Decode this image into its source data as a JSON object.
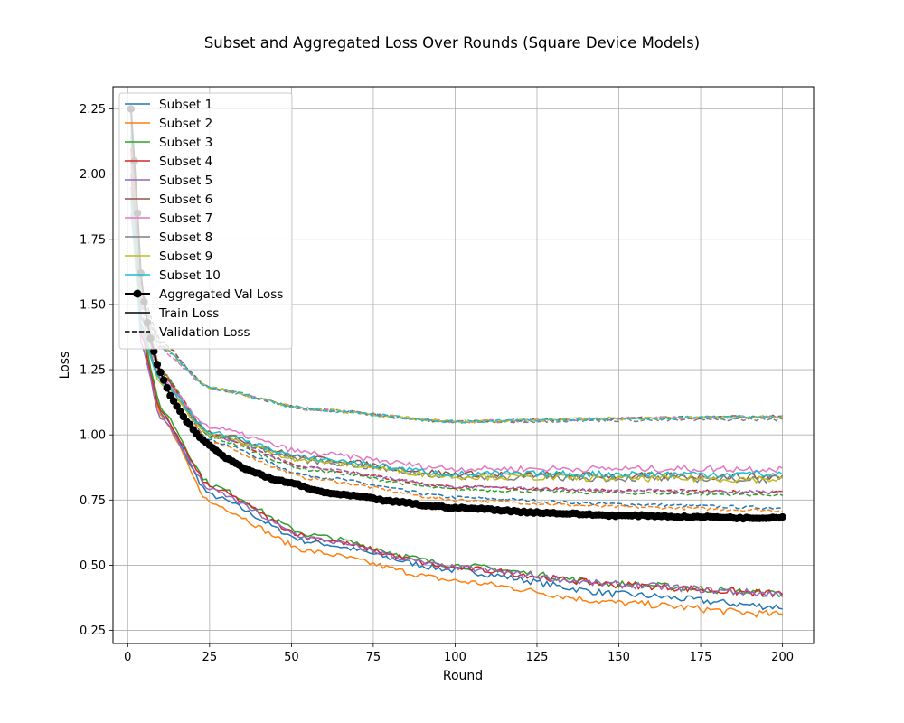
{
  "chart_data": {
    "type": "line",
    "title": "Subset and Aggregated Loss Over Rounds (Square Device Models)",
    "xlabel": "Round",
    "ylabel": "Loss",
    "xlim": [
      -4.5,
      209.5
    ],
    "ylim": [
      0.2,
      2.335
    ],
    "xticks": [
      0,
      25,
      50,
      75,
      100,
      125,
      150,
      175,
      200
    ],
    "yticks": [
      0.25,
      0.5,
      0.75,
      1.0,
      1.25,
      1.5,
      1.75,
      2.0,
      2.25
    ],
    "ytick_labels": [
      "0.25",
      "0.50",
      "0.75",
      "1.00",
      "1.25",
      "1.50",
      "1.75",
      "2.00",
      "2.25"
    ],
    "grid": true,
    "legend_position": "upper-left",
    "rounds": [
      1,
      200
    ],
    "colors": {
      "Subset 1": "#1f77b4",
      "Subset 2": "#ff7f0e",
      "Subset 3": "#2ca02c",
      "Subset 4": "#d62728",
      "Subset 5": "#9467bd",
      "Subset 6": "#8c564b",
      "Subset 7": "#e377c2",
      "Subset 8": "#7f7f7f",
      "Subset 9": "#bcbd22",
      "Subset 10": "#17becf"
    },
    "subsets": [
      {
        "name": "Subset 1",
        "train": {
          "start": 2.2,
          "end": 0.34,
          "knee": [
            25,
            0.77
          ],
          "mid": [
            100,
            0.48
          ]
        },
        "val": {
          "start": 2.2,
          "end": 0.72,
          "knee": [
            25,
            0.98
          ],
          "mid": [
            100,
            0.76
          ]
        }
      },
      {
        "name": "Subset 2",
        "train": {
          "start": 2.25,
          "end": 0.31,
          "knee": [
            25,
            0.74
          ],
          "mid": [
            100,
            0.44
          ]
        },
        "val": {
          "start": 2.25,
          "end": 0.71,
          "knee": [
            25,
            0.97
          ],
          "mid": [
            100,
            0.75
          ]
        }
      },
      {
        "name": "Subset 3",
        "train": {
          "start": 2.15,
          "end": 0.39,
          "knee": [
            25,
            0.81
          ],
          "mid": [
            100,
            0.5
          ]
        },
        "val": {
          "start": 2.15,
          "end": 0.77,
          "knee": [
            25,
            0.99
          ],
          "mid": [
            100,
            0.79
          ]
        }
      },
      {
        "name": "Subset 4",
        "train": {
          "start": 2.1,
          "end": 0.39,
          "knee": [
            25,
            0.8
          ],
          "mid": [
            100,
            0.49
          ]
        },
        "val": {
          "start": 2.1,
          "end": 0.78,
          "knee": [
            25,
            1.0
          ],
          "mid": [
            100,
            0.8
          ]
        }
      },
      {
        "name": "Subset 5",
        "train": {
          "start": 2.05,
          "end": 0.39,
          "knee": [
            25,
            0.79
          ],
          "mid": [
            100,
            0.49
          ]
        },
        "val": {
          "start": 2.05,
          "end": 0.78,
          "knee": [
            25,
            1.0
          ],
          "mid": [
            100,
            0.8
          ]
        }
      },
      {
        "name": "Subset 6",
        "train": {
          "start": 2.0,
          "end": 0.84,
          "knee": [
            25,
            1.01
          ],
          "mid": [
            100,
            0.85
          ]
        },
        "val": {
          "start": 2.0,
          "end": 1.07,
          "knee": [
            25,
            1.18
          ],
          "mid": [
            100,
            1.05
          ]
        }
      },
      {
        "name": "Subset 7",
        "train": {
          "start": 1.85,
          "end": 0.87,
          "knee": [
            25,
            1.03
          ],
          "mid": [
            100,
            0.87
          ]
        },
        "val": {
          "start": 1.85,
          "end": 1.07,
          "knee": [
            25,
            1.18
          ],
          "mid": [
            100,
            1.05
          ]
        }
      },
      {
        "name": "Subset 8",
        "train": {
          "start": 1.95,
          "end": 0.83,
          "knee": [
            25,
            1.0
          ],
          "mid": [
            100,
            0.84
          ]
        },
        "val": {
          "start": 1.95,
          "end": 1.06,
          "knee": [
            25,
            1.18
          ],
          "mid": [
            100,
            1.05
          ]
        }
      },
      {
        "name": "Subset 9",
        "train": {
          "start": 1.9,
          "end": 0.83,
          "knee": [
            25,
            1.0
          ],
          "mid": [
            100,
            0.84
          ]
        },
        "val": {
          "start": 1.9,
          "end": 1.07,
          "knee": [
            25,
            1.18
          ],
          "mid": [
            100,
            1.05
          ]
        }
      },
      {
        "name": "Subset 10",
        "train": {
          "start": 1.9,
          "end": 0.85,
          "knee": [
            25,
            1.01
          ],
          "mid": [
            100,
            0.85
          ]
        },
        "val": {
          "start": 1.9,
          "end": 1.07,
          "knee": [
            25,
            1.18
          ],
          "mid": [
            100,
            1.05
          ]
        }
      }
    ],
    "aggregated": {
      "name": "Aggregated Val Loss",
      "color": "#000000",
      "x": [
        1,
        2,
        3,
        4,
        5,
        6,
        7,
        8,
        9,
        10,
        11,
        12,
        13,
        14,
        15,
        16,
        17,
        18,
        19,
        20,
        22,
        24,
        26,
        28,
        30,
        33,
        36,
        40,
        44,
        48,
        52,
        56,
        60,
        65,
        70,
        75,
        80,
        85,
        90,
        95,
        100,
        110,
        120,
        130,
        140,
        150,
        160,
        170,
        180,
        190,
        200
      ],
      "y": [
        2.25,
        2.05,
        1.85,
        1.62,
        1.51,
        1.43,
        1.37,
        1.32,
        1.27,
        1.24,
        1.21,
        1.18,
        1.15,
        1.13,
        1.11,
        1.09,
        1.07,
        1.05,
        1.04,
        1.02,
        0.99,
        0.97,
        0.95,
        0.93,
        0.91,
        0.89,
        0.87,
        0.85,
        0.83,
        0.82,
        0.81,
        0.79,
        0.78,
        0.77,
        0.765,
        0.755,
        0.745,
        0.74,
        0.73,
        0.725,
        0.72,
        0.715,
        0.705,
        0.7,
        0.695,
        0.69,
        0.69,
        0.685,
        0.685,
        0.68,
        0.685
      ]
    },
    "legend": [
      {
        "label": "Subset 1",
        "style": "line",
        "color": "#1f77b4"
      },
      {
        "label": "Subset 2",
        "style": "line",
        "color": "#ff7f0e"
      },
      {
        "label": "Subset 3",
        "style": "line",
        "color": "#2ca02c"
      },
      {
        "label": "Subset 4",
        "style": "line",
        "color": "#d62728"
      },
      {
        "label": "Subset 5",
        "style": "line",
        "color": "#9467bd"
      },
      {
        "label": "Subset 6",
        "style": "line",
        "color": "#8c564b"
      },
      {
        "label": "Subset 7",
        "style": "line",
        "color": "#e377c2"
      },
      {
        "label": "Subset 8",
        "style": "line",
        "color": "#7f7f7f"
      },
      {
        "label": "Subset 9",
        "style": "line",
        "color": "#bcbd22"
      },
      {
        "label": "Subset 10",
        "style": "line",
        "color": "#17becf"
      },
      {
        "label": "Aggregated Val Loss",
        "style": "line-marker",
        "color": "#000000"
      },
      {
        "label": "Train Loss",
        "style": "line",
        "color": "#000000"
      },
      {
        "label": "Validation Loss",
        "style": "dashed",
        "color": "#000000"
      }
    ]
  }
}
